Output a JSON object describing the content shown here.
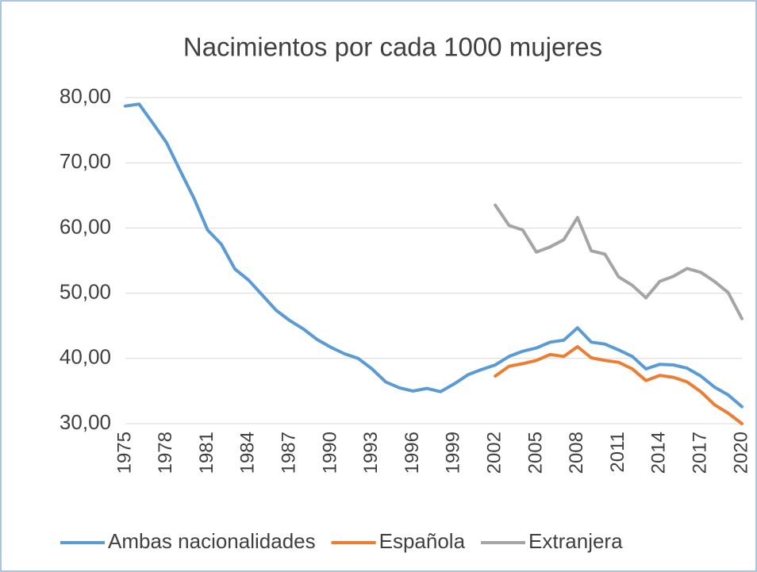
{
  "chart_data": {
    "type": "line",
    "title": "Nacimientos por cada 1000 mujeres",
    "x": [
      1975,
      1976,
      1977,
      1978,
      1979,
      1980,
      1981,
      1982,
      1983,
      1984,
      1985,
      1986,
      1987,
      1988,
      1989,
      1990,
      1991,
      1992,
      1993,
      1994,
      1995,
      1996,
      1997,
      1998,
      1999,
      2000,
      2001,
      2002,
      2003,
      2004,
      2005,
      2006,
      2007,
      2008,
      2009,
      2010,
      2011,
      2012,
      2013,
      2014,
      2015,
      2016,
      2017,
      2018,
      2019,
      2020
    ],
    "xlim": [
      1975,
      2020
    ],
    "xticks": [
      1975,
      1978,
      1981,
      1984,
      1987,
      1990,
      1993,
      1996,
      1999,
      2002,
      2005,
      2008,
      2011,
      2014,
      2017,
      2020
    ],
    "ylim": [
      30,
      80
    ],
    "yticks": [
      {
        "value": 30,
        "label": "30,00"
      },
      {
        "value": 40,
        "label": "40,00"
      },
      {
        "value": 50,
        "label": "50,00"
      },
      {
        "value": 60,
        "label": "60,00"
      },
      {
        "value": 70,
        "label": "70,00"
      },
      {
        "value": 80,
        "label": "80,00"
      }
    ],
    "grid": true,
    "legend": "bottom",
    "series": [
      {
        "name": "Ambas nacionalidades",
        "color": "#5b9bd5",
        "values": [
          78.7,
          79.0,
          76.1,
          73.1,
          68.8,
          64.6,
          59.7,
          57.5,
          53.7,
          52.0,
          49.7,
          47.4,
          45.8,
          44.5,
          42.9,
          41.7,
          40.7,
          40.0,
          38.4,
          36.4,
          35.5,
          35.0,
          35.4,
          34.9,
          36.1,
          37.5,
          38.3,
          39.0,
          40.3,
          41.1,
          41.6,
          42.5,
          42.8,
          44.7,
          42.5,
          42.2,
          41.3,
          40.3,
          38.4,
          39.1,
          39.0,
          38.5,
          37.3,
          35.6,
          34.4,
          32.6
        ]
      },
      {
        "name": "Española",
        "color": "#ed7d31",
        "values": [
          null,
          null,
          null,
          null,
          null,
          null,
          null,
          null,
          null,
          null,
          null,
          null,
          null,
          null,
          null,
          null,
          null,
          null,
          null,
          null,
          null,
          null,
          null,
          null,
          null,
          null,
          null,
          37.3,
          38.8,
          39.2,
          39.7,
          40.6,
          40.3,
          41.8,
          40.1,
          39.7,
          39.4,
          38.4,
          36.6,
          37.4,
          37.1,
          36.4,
          34.9,
          32.9,
          31.6,
          30.0
        ]
      },
      {
        "name": "Extranjera",
        "color": "#a5a5a5",
        "values": [
          null,
          null,
          null,
          null,
          null,
          null,
          null,
          null,
          null,
          null,
          null,
          null,
          null,
          null,
          null,
          null,
          null,
          null,
          null,
          null,
          null,
          null,
          null,
          null,
          null,
          null,
          null,
          63.5,
          60.4,
          59.7,
          56.3,
          57.1,
          58.2,
          61.6,
          56.5,
          56.0,
          52.5,
          51.2,
          49.3,
          51.8,
          52.6,
          53.8,
          53.2,
          51.8,
          50.1,
          46.1
        ]
      }
    ]
  }
}
